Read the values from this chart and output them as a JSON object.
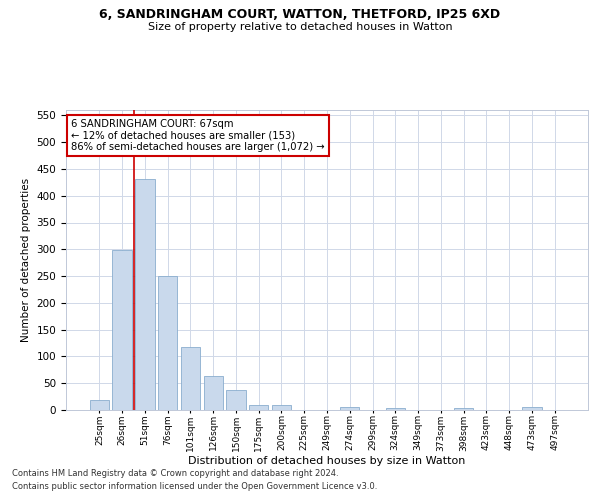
{
  "title": "6, SANDRINGHAM COURT, WATTON, THETFORD, IP25 6XD",
  "subtitle": "Size of property relative to detached houses in Watton",
  "xlabel": "Distribution of detached houses by size in Watton",
  "ylabel": "Number of detached properties",
  "bar_categories": [
    "25sqm",
    "26sqm",
    "51sqm",
    "76sqm",
    "101sqm",
    "126sqm",
    "150sqm",
    "175sqm",
    "200sqm",
    "225sqm",
    "249sqm",
    "274sqm",
    "299sqm",
    "324sqm",
    "349sqm",
    "373sqm",
    "398sqm",
    "423sqm",
    "448sqm",
    "473sqm",
    "497sqm"
  ],
  "bar_values": [
    18,
    298,
    432,
    250,
    118,
    63,
    37,
    10,
    10,
    0,
    0,
    5,
    0,
    3,
    0,
    0,
    4,
    0,
    0,
    5,
    0
  ],
  "bar_color": "#c9d9ec",
  "bar_edge_color": "#8aadce",
  "annotation_text": "6 SANDRINGHAM COURT: 67sqm\n← 12% of detached houses are smaller (153)\n86% of semi-detached houses are larger (1,072) →",
  "annotation_box_color": "#ffffff",
  "annotation_box_edge": "#cc0000",
  "vline_x": 1.5,
  "vline_color": "#cc0000",
  "ylim": [
    0,
    560
  ],
  "yticks": [
    0,
    50,
    100,
    150,
    200,
    250,
    300,
    350,
    400,
    450,
    500,
    550
  ],
  "footer_line1": "Contains HM Land Registry data © Crown copyright and database right 2024.",
  "footer_line2": "Contains public sector information licensed under the Open Government Licence v3.0.",
  "bg_color": "#ffffff",
  "grid_color": "#d0d8e8"
}
